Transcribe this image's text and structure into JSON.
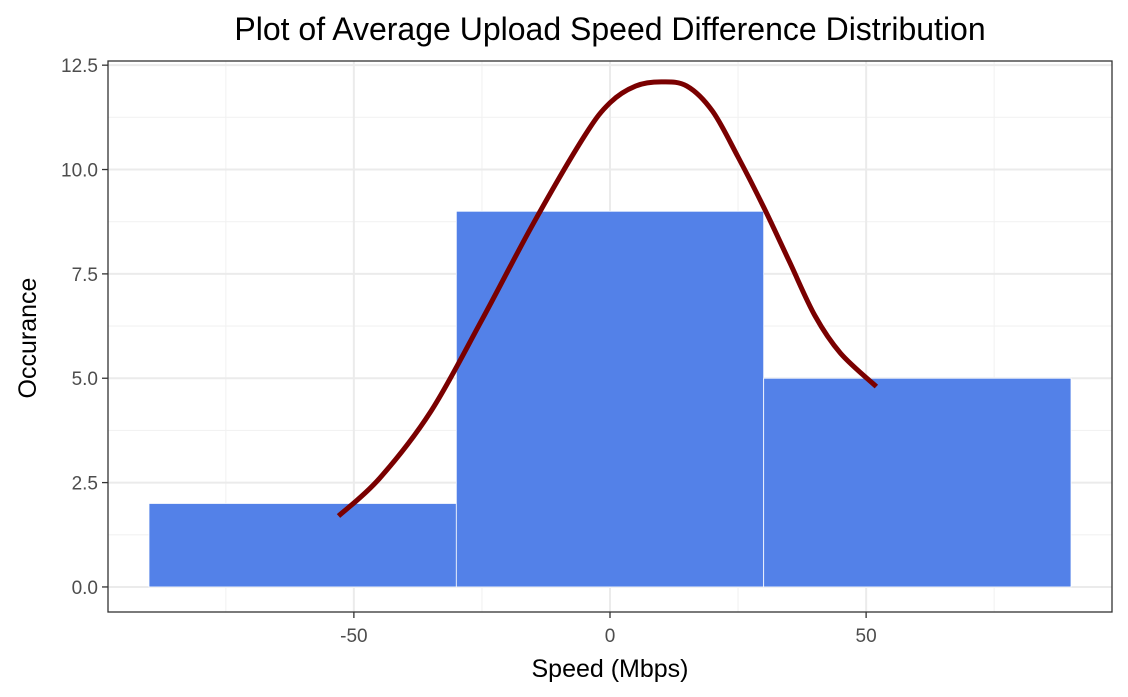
{
  "chart_data": {
    "type": "bar",
    "title": "Plot of Average Upload Speed Difference Distribution",
    "xlabel": "Speed (Mbps)",
    "ylabel": "Occurance",
    "bins": [
      {
        "x0": -90,
        "x1": -30,
        "count": 2
      },
      {
        "x0": -30,
        "x1": 30,
        "count": 9
      },
      {
        "x0": 30,
        "x1": 90,
        "count": 5
      }
    ],
    "density_curve": {
      "x": [
        -53,
        -45,
        -35,
        -25,
        -15,
        -5,
        0,
        5,
        10,
        15,
        20,
        25,
        30,
        35,
        40,
        45,
        52
      ],
      "y": [
        1.7,
        2.6,
        4.2,
        6.4,
        8.7,
        10.8,
        11.6,
        12.0,
        12.1,
        12.0,
        11.4,
        10.3,
        9.1,
        7.8,
        6.5,
        5.6,
        4.8
      ]
    },
    "xlim": [
      -98,
      98
    ],
    "ylim": [
      -0.6,
      12.6
    ],
    "xticks": [
      -50,
      0,
      50
    ],
    "xtick_labels": [
      "-50",
      "0",
      "50"
    ],
    "yticks": [
      0,
      2.5,
      5,
      7.5,
      10,
      12.5
    ],
    "ytick_labels": [
      "0.0",
      "2.5",
      "5.0",
      "7.5",
      "10.0",
      "12.5"
    ],
    "grid": true,
    "legend": "none",
    "colors": {
      "bar_fill": "#5381E8",
      "bar_edge": "#ffffff",
      "curve": "#7A0000",
      "grid_major": "#ebebeb",
      "grid_minor": "#f2f2f2",
      "panel_border": "#333333",
      "tick_text": "#4d4d4d"
    }
  }
}
